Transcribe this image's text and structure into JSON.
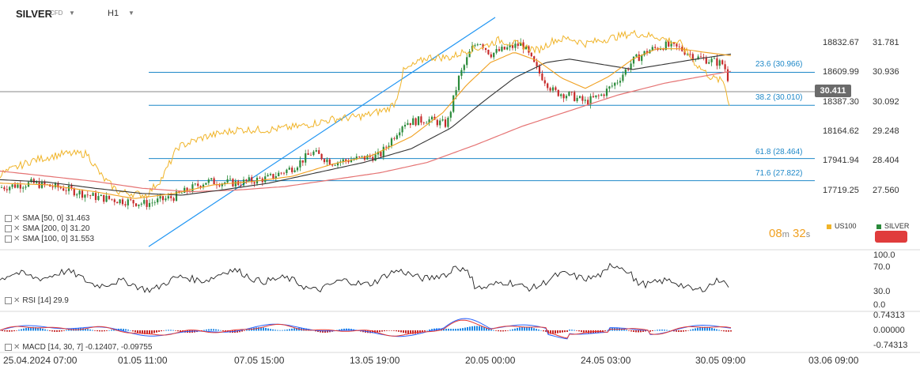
{
  "header": {
    "symbol": "SILVER",
    "symbol_type": "CFD",
    "timeframe": "H1"
  },
  "price_axis": {
    "left_labels": [
      "18832.67",
      "18609.99",
      "18387.30",
      "18164.62",
      "17941.94",
      "17719.25"
    ],
    "right_labels": [
      "31.781",
      "30.936",
      "30.092",
      "29.248",
      "28.404",
      "27.560"
    ],
    "current_price": "30.411"
  },
  "fibonacci": [
    {
      "label": "23.6 (30.966)",
      "value": 30.966
    },
    {
      "label": "38.2 (30.010)",
      "value": 30.01
    },
    {
      "label": "61.8 (28.464)",
      "value": 28.464
    },
    {
      "label": "71.6 (27.822)",
      "value": 27.822
    }
  ],
  "indicators": {
    "sma50": "SMA [50, 0] 31.463",
    "sma200": "SMA [200, 0] 31.20",
    "sma100": "SMA [100, 0] 31.553",
    "rsi": "RSI [14] 29.9",
    "macd": "MACD [14, 30, 7] -0.12407, -0.09755"
  },
  "rsi_axis": [
    "100.0",
    "70.0",
    "30.0",
    "0.0"
  ],
  "macd_axis": [
    "0.74313",
    "0.00000",
    "-0.74313"
  ],
  "time_axis": [
    "25.04.2024  07:00",
    "01.05  11:00",
    "07.05  15:00",
    "13.05  19:00",
    "20.05  00:00",
    "24.05  03:00",
    "30.05  09:00",
    "03.06  09:00"
  ],
  "timer": {
    "minutes": "08",
    "m_unit": "m",
    "seconds": "32",
    "s_unit": "s"
  },
  "legend": {
    "us100": "US100",
    "silver": "SILVER"
  },
  "colors": {
    "candle_up": "#2a8a3a",
    "candle_down": "#c62828",
    "us100": "#f0b429",
    "sma50": "#f0a020",
    "sma100": "#333333",
    "sma200": "#e57373",
    "fib": "#1e88c8",
    "trendline": "#2196f3",
    "red_button": "#e03c3c"
  },
  "chart_data": {
    "type": "line",
    "series_name": "SILVER",
    "y_range": [
      27.3,
      32.1
    ],
    "x": [
      "25.04.2024 07:00",
      "01.05 11:00",
      "07.05 15:00",
      "13.05 19:00",
      "20.05 00:00",
      "24.05 03:00",
      "30.05 09:00",
      "03.06 09:00"
    ],
    "close": [
      27.65,
      27.2,
      27.8,
      28.9,
      32.0,
      30.1,
      30.9,
      30.41
    ],
    "rsi_last": 29.9,
    "macd_last": [
      -0.12407,
      -0.09755
    ]
  }
}
